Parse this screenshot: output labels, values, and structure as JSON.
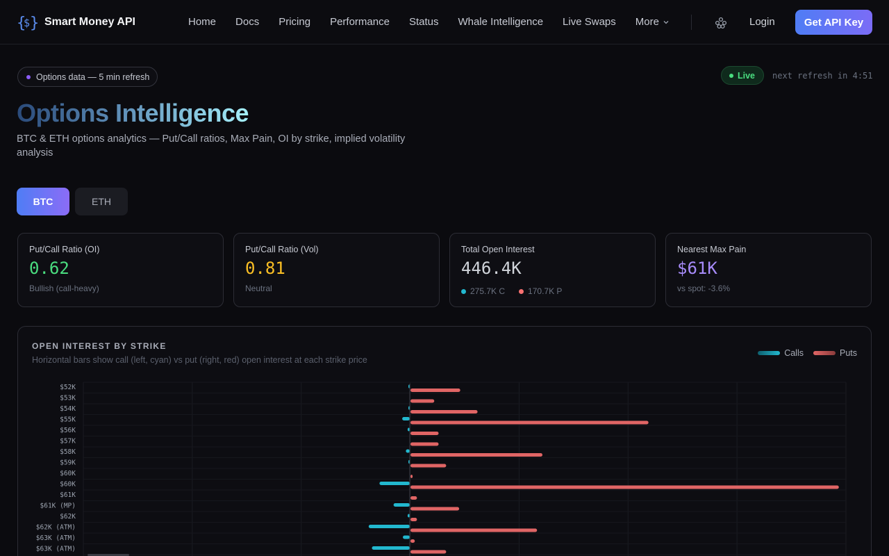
{
  "nav": {
    "brand": "Smart Money API",
    "links": [
      "Home",
      "Docs",
      "Pricing",
      "Performance",
      "Status",
      "Whale Intelligence",
      "Live Swaps"
    ],
    "more": "More",
    "login": "Login",
    "cta": "Get API Key",
    "icons": {
      "logo": "curly-dollar-logo",
      "apps": "cluster-icon",
      "more": "chevron-down-icon"
    }
  },
  "header": {
    "pill": "Options data — 5 min refresh",
    "live": "Live",
    "refresh": "next refresh in 4:51",
    "title": "Options Intelligence",
    "subtitle": "BTC & ETH options analytics — Put/Call ratios, Max Pain, OI by strike, implied volatility analysis"
  },
  "tabs": {
    "btc": "BTC",
    "eth": "ETH",
    "selected": "BTC"
  },
  "cards": [
    {
      "label": "Put/Call Ratio (OI)",
      "value": "0.62",
      "sub": "Bullish (call-heavy)",
      "color": "#4ade80"
    },
    {
      "label": "Put/Call Ratio (Vol)",
      "value": "0.81",
      "sub": "Neutral",
      "color": "#fbbf24"
    },
    {
      "label": "Total Open Interest",
      "value": "446.4K",
      "calls": "275.7K C",
      "puts": "170.7K P",
      "color": "#d1d5db"
    },
    {
      "label": "Nearest Max Pain",
      "value": "$61K",
      "sub": "vs spot: -3.6%",
      "color": "#a78bfa"
    }
  ],
  "colors": {
    "calls": "#22b8cf",
    "puts": "#e06565",
    "accent": "#4f7df5"
  },
  "chart": {
    "title": "OPEN INTEREST BY STRIKE",
    "desc": "Horizontal bars show call (left, cyan) vs put (right, red) open interest at each strike price",
    "legend": {
      "calls": "Calls",
      "puts": "Puts"
    }
  },
  "chart_data": {
    "type": "bar",
    "orientation": "horizontal-butterfly",
    "title": "OPEN INTEREST BY STRIKE",
    "categories": [
      "$52K",
      "$53K",
      "$54K",
      "$55K",
      "$56K",
      "$57K",
      "$58K",
      "$59K",
      "$60K",
      "$60K",
      "$61K",
      "$61K (MP)",
      "$62K",
      "$62K (ATM)",
      "$63K (ATM)",
      "$63K (ATM)"
    ],
    "series": [
      {
        "name": "Calls",
        "values": [
          0.3,
          0,
          0.5,
          3.5,
          1.0,
          0,
          1.8,
          0.6,
          0,
          14.0,
          0,
          7.5,
          1.0,
          19.0,
          3.2,
          17.5
        ]
      },
      {
        "name": "Puts",
        "values": [
          23,
          11,
          31,
          110,
          13,
          13,
          61,
          16.5,
          1,
          198,
          3,
          22.5,
          3,
          58.5,
          2,
          16.5
        ]
      }
    ],
    "grid": true,
    "legend": "top-right"
  }
}
